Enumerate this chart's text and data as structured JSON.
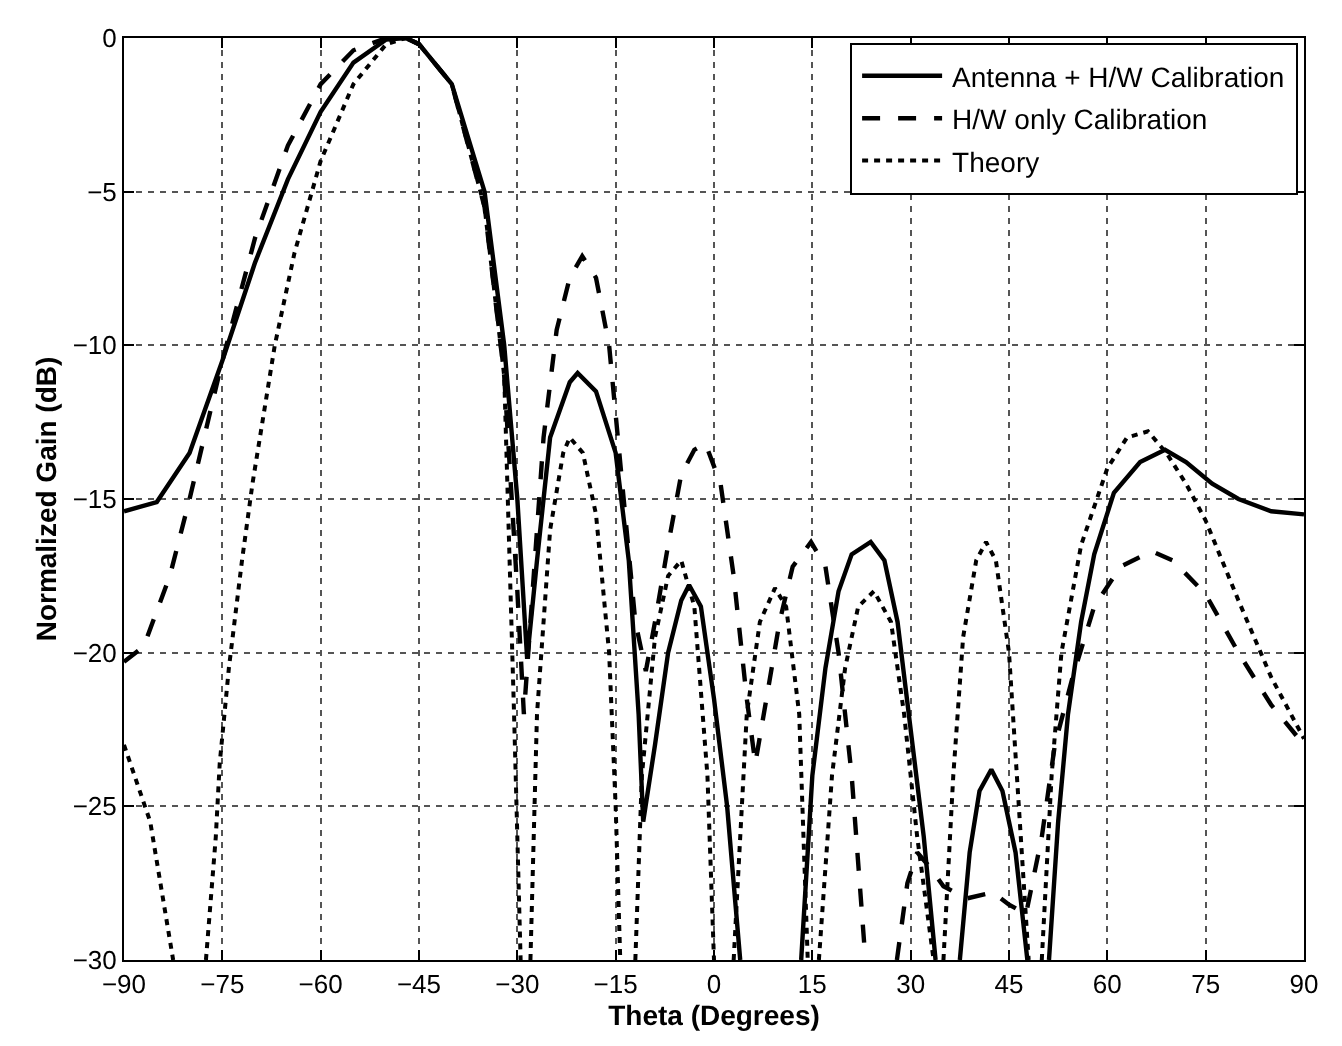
{
  "chart_data": {
    "type": "line",
    "xlabel": "Theta (Degrees)",
    "ylabel": "Normalized Gain (dB)",
    "xlim": [
      -90,
      90
    ],
    "xticks": [
      -90,
      -75,
      -60,
      -45,
      -30,
      -15,
      0,
      15,
      30,
      45,
      60,
      75,
      90
    ],
    "ylim": [
      -30,
      0
    ],
    "yticks": [
      -30,
      -25,
      -20,
      -15,
      -10,
      -5,
      0
    ],
    "grid": true,
    "legend": "top right",
    "series": [
      {
        "name": "Antenna + H/W Calibration",
        "color": "#000000",
        "line_style": "solid",
        "x": [
          -90,
          -85,
          -80,
          -75,
          -70,
          -65,
          -60,
          -55,
          -50,
          -47,
          -45,
          -40,
          -35,
          -32,
          -30,
          -28.5,
          -27,
          -25,
          -22,
          -20.8,
          -18,
          -15,
          -13,
          -11.5,
          -10.8,
          -9,
          -7,
          -5,
          -3.8,
          -2,
          0,
          2,
          4,
          8.6,
          13.3,
          15,
          17,
          19,
          21,
          23.9,
          26,
          28,
          30,
          32,
          33.8,
          35.6,
          37.5,
          39,
          40.5,
          42.3,
          44,
          46,
          47.8,
          49.5,
          51.1,
          52.5,
          54,
          56,
          58,
          61,
          65,
          68.8,
          72,
          76,
          80,
          85,
          90
        ],
        "values": [
          -15.4,
          -15.1,
          -13.5,
          -10.5,
          -7.3,
          -4.6,
          -2.4,
          -0.8,
          -0.05,
          0,
          -0.2,
          -1.5,
          -5,
          -10,
          -15,
          -20.2,
          -17,
          -13,
          -11.2,
          -10.9,
          -11.5,
          -13.5,
          -17,
          -22,
          -25.5,
          -23,
          -20,
          -18.3,
          -17.8,
          -18.5,
          -21.5,
          -25,
          -30,
          null,
          -30,
          -24,
          -20.5,
          -18,
          -16.8,
          -16.4,
          -17,
          -19,
          -22.5,
          -26,
          -30,
          null,
          -30,
          -26.5,
          -24.5,
          -23.8,
          -24.5,
          -26.5,
          -30,
          null,
          -30,
          -25.5,
          -22,
          -19,
          -16.8,
          -14.8,
          -13.8,
          -13.4,
          -13.8,
          -14.5,
          -15,
          -15.4,
          -15.5
        ]
      },
      {
        "name": "H/W only Calibration",
        "color": "#000000",
        "line_style": "dashed",
        "x": [
          -90,
          -87,
          -83,
          -80,
          -75,
          -70,
          -65,
          -60,
          -55,
          -50,
          -47,
          -45,
          -40,
          -35,
          -32,
          -30,
          -29,
          -28,
          -26,
          -24,
          -22,
          -20.1,
          -18,
          -16,
          -14,
          -12,
          -10.4,
          -9,
          -7,
          -5,
          -3,
          -1.3,
          1,
          3,
          5,
          6.3,
          8,
          10,
          12,
          14.8,
          17,
          19,
          21,
          23.1,
          25.5,
          27.9,
          29.5,
          31,
          33,
          35,
          38.5,
          42.6,
          45,
          47.6,
          50,
          52,
          54.7,
          58,
          62,
          66.8,
          70,
          75,
          80,
          85,
          90
        ],
        "values": [
          -20.3,
          -19.8,
          -17.5,
          -15,
          -10.5,
          -6.5,
          -3.5,
          -1.5,
          -0.4,
          0,
          0,
          -0.2,
          -1.5,
          -5.5,
          -11,
          -18,
          -22,
          -19,
          -13,
          -9.5,
          -7.8,
          -7.1,
          -7.8,
          -10,
          -14.5,
          -19,
          -20.6,
          -19,
          -16.5,
          -14.2,
          -13.4,
          -13.2,
          -14.5,
          -17.5,
          -21.5,
          -23.6,
          -21.5,
          -19,
          -17.2,
          -16.4,
          -17.2,
          -20,
          -24,
          -30,
          null,
          -30,
          -27.5,
          -26.5,
          -27,
          -27.6,
          -28,
          -27.8,
          -28.2,
          -28.5,
          -26,
          -23,
          -20.8,
          -18.5,
          -17.2,
          -16.7,
          -17,
          -18.1,
          -20,
          -21.7,
          -23
        ]
      },
      {
        "name": "Theory",
        "color": "#000000",
        "line_style": "dotted",
        "x": [
          -90,
          -86,
          -82.5,
          -80,
          -77.5,
          -76,
          -75.4,
          -74,
          -72,
          -70.4,
          -67,
          -64,
          -60,
          -55,
          -50,
          -47,
          -45,
          -40,
          -35,
          -32,
          -30.5,
          -29.5,
          -28.8,
          -28,
          -27,
          -25,
          -23,
          -22,
          -20,
          -18,
          -16,
          -15,
          -14.3,
          -13,
          -12,
          -11,
          -9,
          -7,
          -5,
          -3,
          -1,
          0,
          1.5,
          3,
          5,
          7,
          9.3,
          11,
          13,
          14.3,
          15,
          16,
          18,
          20,
          22,
          24.4,
          27,
          29,
          31,
          33.5,
          34.2,
          35,
          36.5,
          38,
          40,
          41.5,
          43,
          45,
          46.5,
          48,
          49,
          50,
          51.5,
          53,
          56,
          60,
          63,
          66.2,
          69,
          72,
          75,
          80,
          85,
          90
        ],
        "values": [
          -23,
          -25.5,
          -30,
          null,
          -30,
          -26,
          -23.6,
          -20.5,
          -17,
          -14.5,
          -10,
          -7,
          -4,
          -1.5,
          -0.2,
          0,
          -0.2,
          -1.5,
          -5.5,
          -11,
          -22,
          -30,
          null,
          -30,
          -22,
          -16,
          -13.5,
          -13,
          -13.5,
          -15.5,
          -20,
          -25,
          -30,
          null,
          -30,
          -24,
          -19.5,
          -17.5,
          -17,
          -18.5,
          -24,
          -30,
          null,
          -30,
          -22,
          -19,
          -17.9,
          -18.5,
          -22,
          -30,
          null,
          -30,
          -24,
          -20.5,
          -18.5,
          -18,
          -19,
          -22,
          -26,
          -30,
          null,
          -30,
          -24,
          -19.5,
          -17,
          -16.4,
          -17,
          -20,
          -25,
          -30,
          null,
          -30,
          -24,
          -20,
          -16.5,
          -14,
          -13,
          -12.8,
          -13.5,
          -14.5,
          -15.7,
          -18.3,
          -20.8,
          -22.8
        ]
      }
    ]
  }
}
